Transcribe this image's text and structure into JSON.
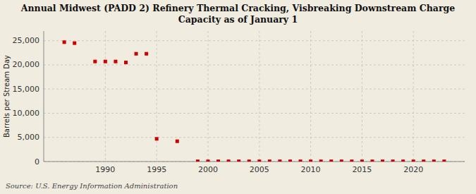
{
  "chart_data": {
    "type": "scatter",
    "title": "Annual Midwest (PADD 2) Refinery Thermal Cracking, Visbreaking Downstream Charge\nCapacity as of January 1",
    "y_label": "Barrels per Stream Day",
    "annotations": [
      "Source: U.S. Energy Information Administration"
    ],
    "x": [
      1986,
      1987,
      1989,
      1990,
      1991,
      1992,
      1993,
      1994,
      1995,
      1997,
      1999,
      2000,
      2001,
      2002,
      2003,
      2004,
      2005,
      2006,
      2007,
      2008,
      2009,
      2010,
      2011,
      2012,
      2013,
      2014,
      2015,
      2016,
      2017,
      2018,
      2019,
      2020,
      2021,
      2022,
      2023
    ],
    "values": [
      24700,
      24500,
      20700,
      20700,
      20700,
      20500,
      22300,
      22300,
      4700,
      4200,
      50,
      50,
      50,
      50,
      50,
      50,
      50,
      50,
      50,
      50,
      50,
      50,
      50,
      50,
      50,
      50,
      50,
      50,
      50,
      50,
      50,
      50,
      50,
      50,
      50
    ],
    "color": "#cc0000",
    "marker": "square",
    "xlim": [
      1984,
      2025
    ],
    "ylim": [
      0,
      27000
    ],
    "xticks": [
      1990,
      1995,
      2000,
      2005,
      2010,
      2015,
      2020
    ],
    "yticks": [
      0,
      {
        "value": 5000,
        "label": "5,000"
      },
      {
        "value": 10000,
        "label": "10,000"
      },
      {
        "value": 15000,
        "label": "15,000"
      },
      {
        "value": 20000,
        "label": "20,000"
      },
      {
        "value": 25000,
        "label": "25,000"
      }
    ],
    "grid": true
  }
}
